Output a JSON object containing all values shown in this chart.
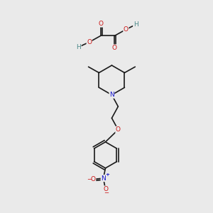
{
  "background_color": "#eaeaea",
  "bond_color": "#1a1a1a",
  "bond_width": 1.2,
  "atom_colors": {
    "C": "#1a1a1a",
    "H": "#4a8888",
    "N": "#1414cc",
    "O": "#cc1414",
    "plus": "#1414cc",
    "minus": "#cc1414"
  },
  "font_size_atom": 6.5,
  "font_size_small": 5.0
}
